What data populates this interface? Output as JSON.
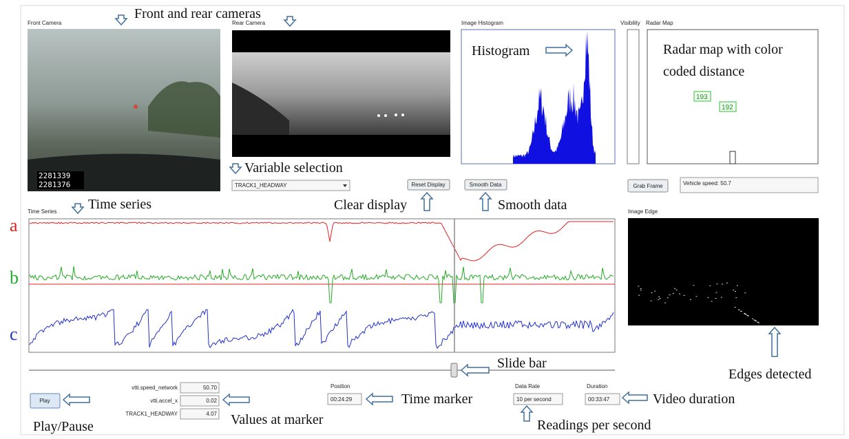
{
  "annotations": {
    "cameras": "Front and rear cameras",
    "histogram": "Histogram",
    "radar_map": [
      "Radar map with color",
      "coded distance"
    ],
    "variable_selection": "Variable selection",
    "time_series": "Time series",
    "clear_display": "Clear display",
    "smooth_data": "Smooth data",
    "slide_bar": "Slide bar",
    "edges_detected": "Edges detected",
    "play_pause": "Play/Pause",
    "values_at_marker": "Values at marker",
    "time_marker": "Time marker",
    "readings_per_second": "Readings per second",
    "video_duration": "Video duration",
    "trace_labels": [
      "a",
      "b",
      "c"
    ]
  },
  "panels": {
    "front_camera": {
      "label": "Front Camera",
      "overlay": [
        "2281339",
        "2281376"
      ]
    },
    "rear_camera": {
      "label": "Rear Camera"
    },
    "image_histogram": {
      "label": "Image Histogram"
    },
    "visibility": {
      "label": "Visibility"
    },
    "radar_map": {
      "label": "Radar Map",
      "targets": [
        "193",
        "192"
      ]
    },
    "time_series": {
      "label": "Time Series"
    },
    "image_edge": {
      "label": "Image Edge"
    }
  },
  "controls": {
    "variable_select": "TRACK1_HEADWAY",
    "reset_display": "Reset Display",
    "smooth_data": "Smooth Data",
    "grab_frame": "Grab Frame",
    "vehicle_speed": "Vehicle speed: 50.7",
    "play": "Play",
    "marker_values": [
      {
        "name": "vtti.speed_network",
        "value": "50.70"
      },
      {
        "name": "vtti.accel_x",
        "value": "0.02"
      },
      {
        "name": "TRACK1_HEADWAY",
        "value": "4.07"
      }
    ],
    "position": {
      "label": "Position",
      "value": "00:24:29"
    },
    "data_rate": {
      "label": "Data Rate",
      "value": "10 per second"
    },
    "duration": {
      "label": "Duration",
      "value": "00:33:47"
    }
  }
}
